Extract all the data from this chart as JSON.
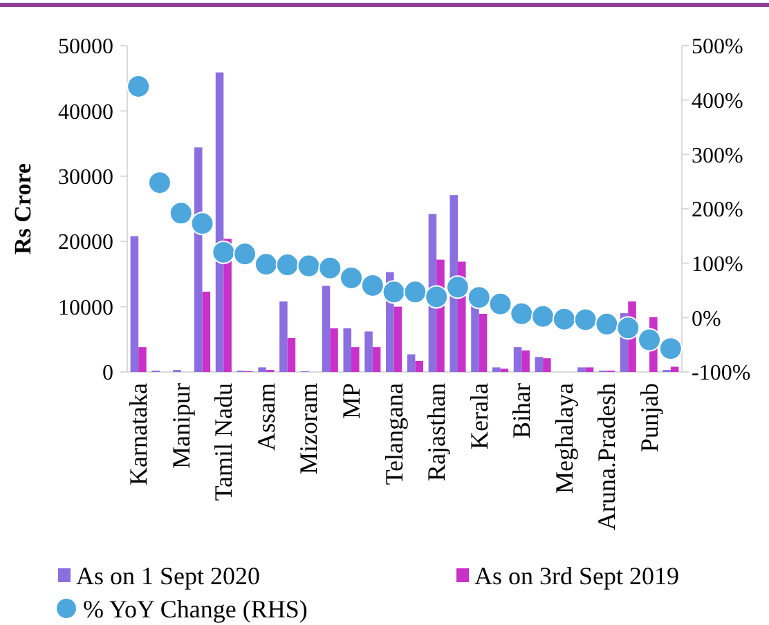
{
  "chart_data": {
    "type": "bar",
    "ylabel": "Rs Crore",
    "categories": [
      "Karnataka",
      null,
      "Manipur",
      null,
      "Tamil Nadu",
      null,
      "Assam",
      null,
      "Mizoram",
      null,
      "MP",
      null,
      "Telangana",
      null,
      "Rajasthan",
      null,
      "Kerala",
      null,
      "Bihar",
      null,
      "Meghalaya",
      null,
      "Aruna.Pradesh",
      null,
      "Punjab",
      null
    ],
    "series": [
      {
        "name": "As on 1 Sept 2020",
        "color": "#8b6fe0",
        "values": [
          20800,
          200,
          300,
          34400,
          45900,
          200,
          700,
          10800,
          100,
          13200,
          6700,
          6200,
          15300,
          2700,
          24200,
          27100,
          10500,
          700,
          3800,
          2300,
          0,
          700,
          200,
          9000,
          null,
          300
        ]
      },
      {
        "name": "As on 3rd Sept 2019",
        "color": "#c832c8",
        "values": [
          3800,
          0,
          0,
          12300,
          20400,
          100,
          300,
          5200,
          0,
          6700,
          3800,
          3800,
          10000,
          1700,
          17200,
          16900,
          8900,
          500,
          3300,
          2100,
          0,
          700,
          200,
          10800,
          8400,
          800
        ]
      },
      {
        "name": "% YoY Change (RHS)",
        "type": "scatter",
        "axis": "y2",
        "color": "#4ea7dc",
        "values": [
          425,
          248,
          192,
          173,
          120,
          117,
          98,
          97,
          95,
          91,
          73,
          59,
          47,
          47,
          38,
          56,
          37,
          25,
          7,
          2,
          -3,
          -4,
          -12,
          -19,
          -41,
          -57
        ]
      }
    ],
    "ylim": [
      0,
      50000
    ],
    "yticks": [
      0,
      10000,
      20000,
      30000,
      40000,
      50000
    ],
    "y2lim": [
      -100,
      500
    ],
    "y2ticks": [
      {
        "value": -100,
        "label": "-100%"
      },
      {
        "value": 0,
        "label": "0%"
      },
      {
        "value": 100,
        "label": "100%"
      },
      {
        "value": 200,
        "label": "200%"
      },
      {
        "value": 300,
        "label": "300%"
      },
      {
        "value": 400,
        "label": "400%"
      },
      {
        "value": 500,
        "label": "500%"
      }
    ],
    "legend": "bottom",
    "marker": "circle"
  }
}
